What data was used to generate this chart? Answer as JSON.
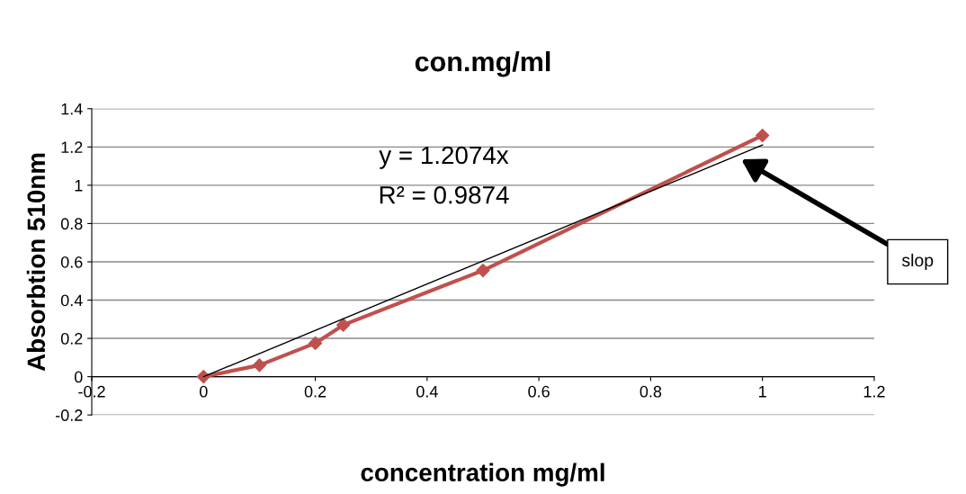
{
  "chart_data": {
    "type": "line",
    "title": "con.mg/ml",
    "xlabel": "concentration mg/ml",
    "ylabel": "Absorbtion 510nm",
    "x": [
      0,
      0.1,
      0.2,
      0.25,
      0.5,
      1
    ],
    "series": [
      {
        "color": "#c0504d",
        "values": [
          0,
          0.06,
          0.175,
          0.27,
          0.555,
          1.26
        ],
        "marker": "diamond"
      },
      {
        "color": "#000000",
        "x": [
          0,
          1
        ],
        "values": [
          0,
          1.21
        ],
        "marker": "none"
      }
    ],
    "annotations": [
      "y = 1.2074x",
      "R² = 0.9874",
      "slop"
    ],
    "xlim": [
      -0.2,
      1.2
    ],
    "ylim": [
      -0.2,
      1.4
    ],
    "xticks": [
      -0.2,
      0,
      0.2,
      0.4,
      0.6,
      0.8,
      1,
      1.2
    ],
    "yticks": [
      -0.2,
      0,
      0.2,
      0.4,
      0.6,
      0.8,
      1,
      1.2,
      1.4
    ],
    "grid": "y",
    "legend": false
  }
}
